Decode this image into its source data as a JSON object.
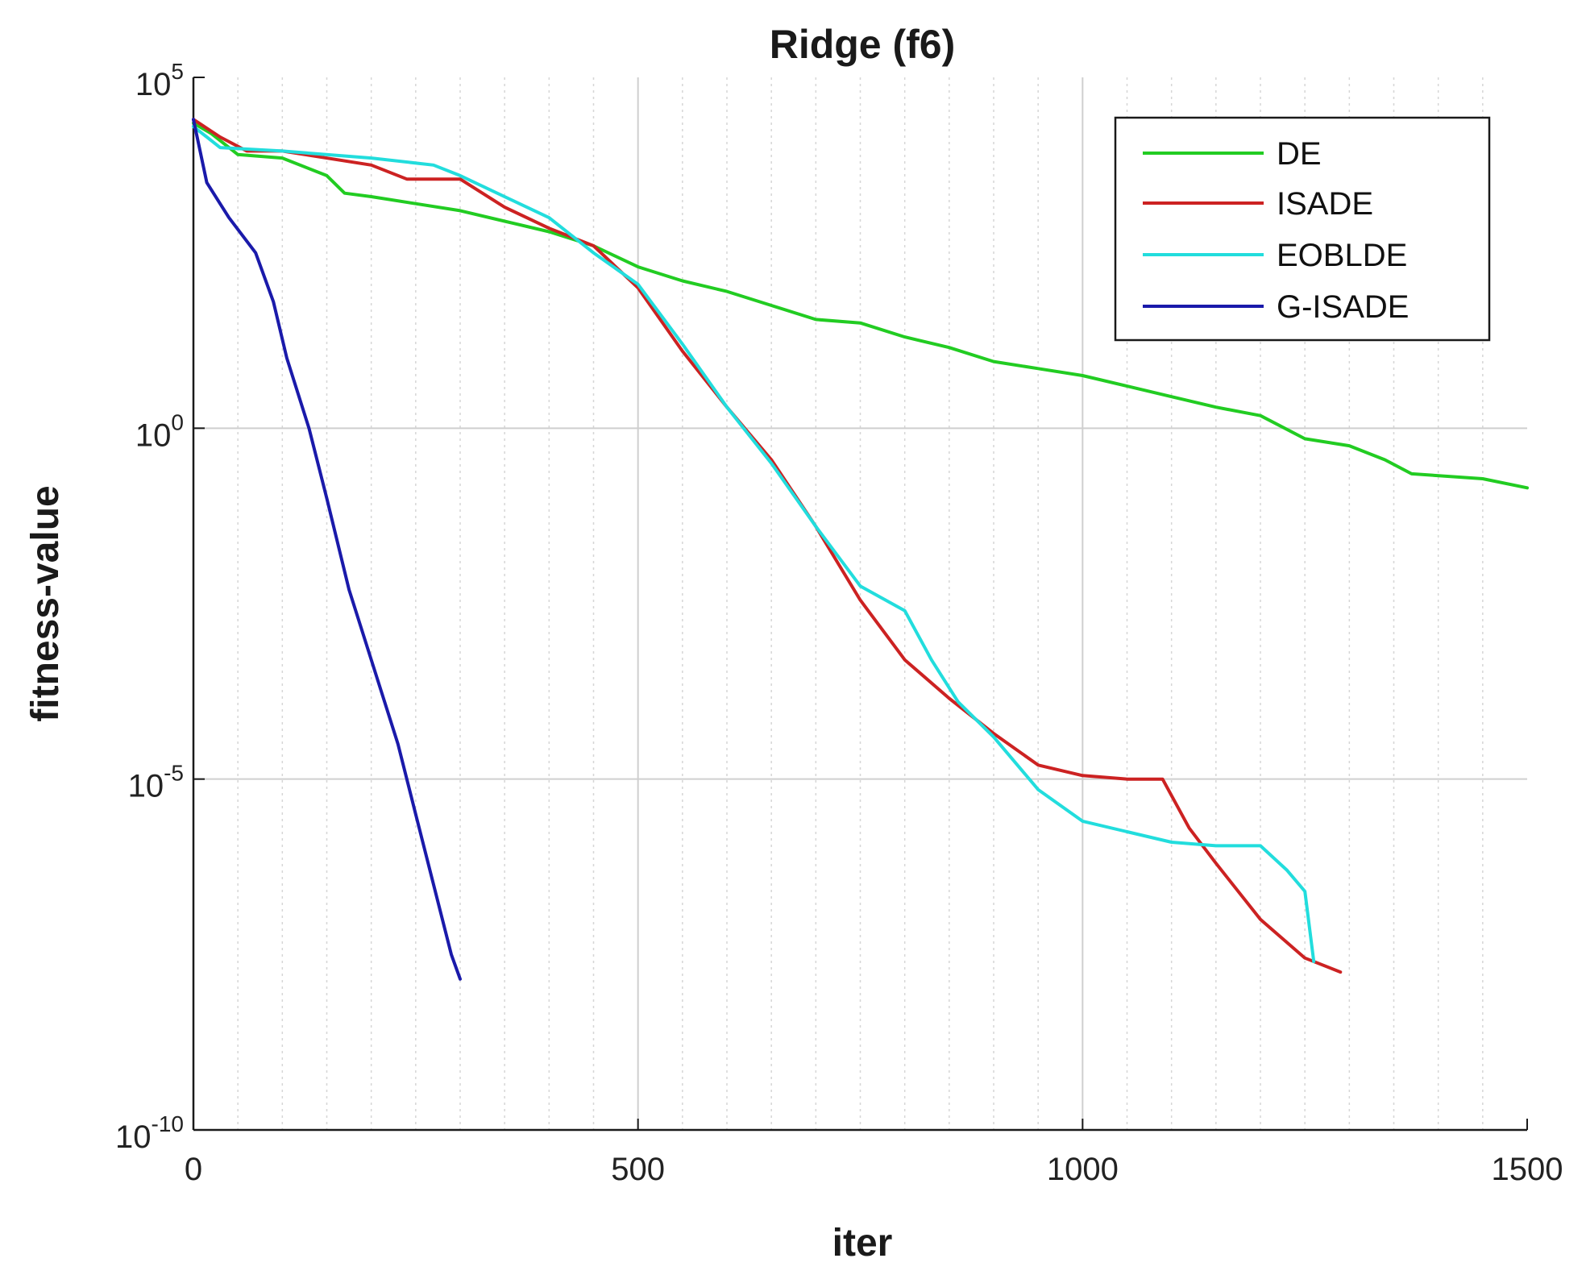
{
  "chart_data": {
    "type": "line",
    "title": "Ridge (f6)",
    "xlabel": "iter",
    "ylabel": "fitness-value",
    "yscale": "log",
    "xlim": [
      0,
      1500
    ],
    "ylim_exponent": [
      -10,
      5
    ],
    "x_ticks": [
      {
        "value": 0,
        "label": "0"
      },
      {
        "value": 500,
        "label": "500"
      },
      {
        "value": 1000,
        "label": "1000"
      },
      {
        "value": 1500,
        "label": "1500"
      }
    ],
    "y_ticks": [
      {
        "exp": 5,
        "base": "10",
        "sup": "5"
      },
      {
        "exp": 0,
        "base": "10",
        "sup": "0"
      },
      {
        "exp": -5,
        "base": "10",
        "sup": "-5"
      },
      {
        "exp": -10,
        "base": "10",
        "sup": "-10"
      }
    ],
    "grid": true,
    "legend_position": "top-right",
    "series": [
      {
        "name": "DE",
        "color": "#22cc22",
        "points": [
          [
            0,
            4.35
          ],
          [
            20,
            4.2
          ],
          [
            50,
            3.9
          ],
          [
            100,
            3.85
          ],
          [
            150,
            3.6
          ],
          [
            170,
            3.35
          ],
          [
            200,
            3.3
          ],
          [
            250,
            3.2
          ],
          [
            300,
            3.1
          ],
          [
            350,
            2.95
          ],
          [
            400,
            2.8
          ],
          [
            450,
            2.6
          ],
          [
            500,
            2.3
          ],
          [
            550,
            2.1
          ],
          [
            600,
            1.95
          ],
          [
            650,
            1.75
          ],
          [
            700,
            1.55
          ],
          [
            750,
            1.5
          ],
          [
            800,
            1.3
          ],
          [
            850,
            1.15
          ],
          [
            900,
            0.95
          ],
          [
            950,
            0.85
          ],
          [
            1000,
            0.75
          ],
          [
            1050,
            0.6
          ],
          [
            1100,
            0.45
          ],
          [
            1150,
            0.3
          ],
          [
            1200,
            0.18
          ],
          [
            1250,
            -0.15
          ],
          [
            1300,
            -0.25
          ],
          [
            1340,
            -0.45
          ],
          [
            1370,
            -0.65
          ],
          [
            1450,
            -0.72
          ],
          [
            1500,
            -0.85
          ]
        ]
      },
      {
        "name": "ISADE",
        "color": "#cc2222",
        "points": [
          [
            0,
            4.4
          ],
          [
            30,
            4.15
          ],
          [
            60,
            3.95
          ],
          [
            100,
            3.95
          ],
          [
            200,
            3.75
          ],
          [
            240,
            3.55
          ],
          [
            300,
            3.55
          ],
          [
            350,
            3.15
          ],
          [
            400,
            2.85
          ],
          [
            450,
            2.6
          ],
          [
            500,
            2.0
          ],
          [
            550,
            1.1
          ],
          [
            600,
            0.3
          ],
          [
            650,
            -0.45
          ],
          [
            700,
            -1.4
          ],
          [
            750,
            -2.45
          ],
          [
            800,
            -3.3
          ],
          [
            850,
            -3.85
          ],
          [
            900,
            -4.35
          ],
          [
            950,
            -4.8
          ],
          [
            1000,
            -4.95
          ],
          [
            1050,
            -5.0
          ],
          [
            1090,
            -5.0
          ],
          [
            1120,
            -5.7
          ],
          [
            1150,
            -6.2
          ],
          [
            1200,
            -7.0
          ],
          [
            1250,
            -7.55
          ],
          [
            1290,
            -7.75
          ]
        ]
      },
      {
        "name": "EOBLDE",
        "color": "#22dddd",
        "points": [
          [
            0,
            4.3
          ],
          [
            30,
            4.0
          ],
          [
            100,
            3.95
          ],
          [
            200,
            3.85
          ],
          [
            270,
            3.75
          ],
          [
            300,
            3.6
          ],
          [
            400,
            3.0
          ],
          [
            450,
            2.5
          ],
          [
            500,
            2.05
          ],
          [
            550,
            1.2
          ],
          [
            600,
            0.3
          ],
          [
            650,
            -0.5
          ],
          [
            700,
            -1.4
          ],
          [
            750,
            -2.25
          ],
          [
            800,
            -2.6
          ],
          [
            830,
            -3.3
          ],
          [
            860,
            -3.9
          ],
          [
            900,
            -4.4
          ],
          [
            950,
            -5.15
          ],
          [
            1000,
            -5.6
          ],
          [
            1050,
            -5.75
          ],
          [
            1100,
            -5.9
          ],
          [
            1150,
            -5.95
          ],
          [
            1200,
            -5.95
          ],
          [
            1230,
            -6.3
          ],
          [
            1250,
            -6.6
          ],
          [
            1260,
            -7.6
          ]
        ]
      },
      {
        "name": "G-ISADE",
        "color": "#1a1aaa",
        "points": [
          [
            0,
            4.4
          ],
          [
            15,
            3.5
          ],
          [
            40,
            3.0
          ],
          [
            70,
            2.5
          ],
          [
            90,
            1.8
          ],
          [
            105,
            1.0
          ],
          [
            130,
            0.0
          ],
          [
            150,
            -1.0
          ],
          [
            175,
            -2.3
          ],
          [
            200,
            -3.3
          ],
          [
            230,
            -4.5
          ],
          [
            250,
            -5.5
          ],
          [
            270,
            -6.5
          ],
          [
            290,
            -7.5
          ],
          [
            300,
            -7.85
          ]
        ]
      }
    ]
  }
}
